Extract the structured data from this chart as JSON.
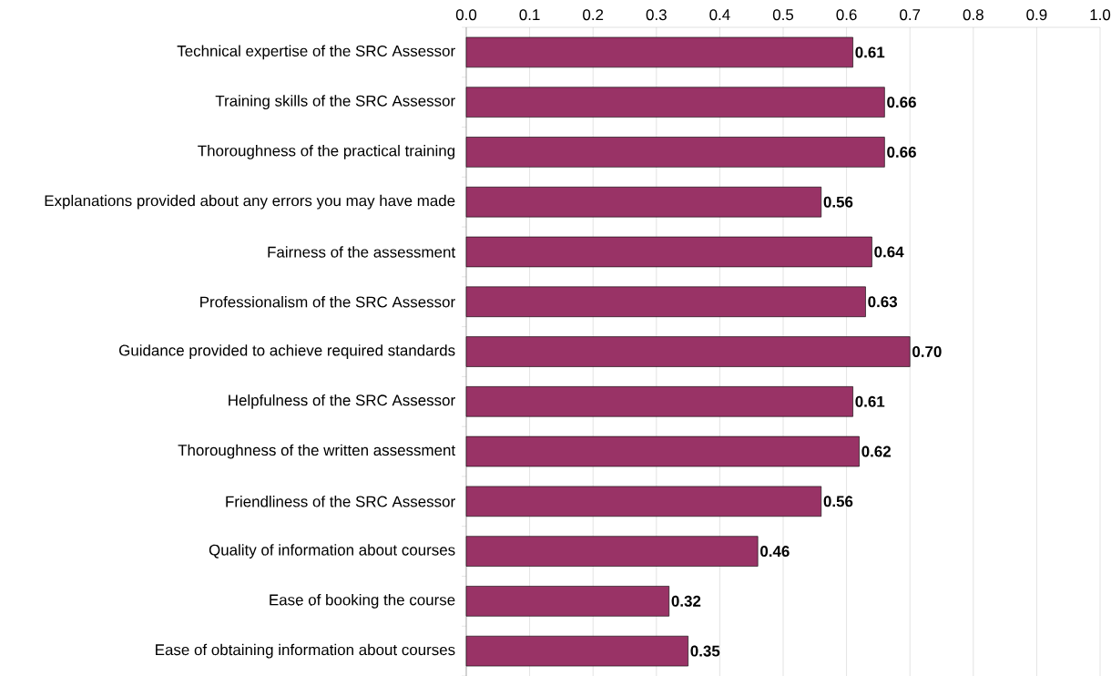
{
  "chart_data": {
    "type": "bar",
    "orientation": "horizontal",
    "categories": [
      "Technical expertise of the SRC Assessor",
      "Training skills of the SRC Assessor",
      "Thoroughness of the practical training",
      "Explanations provided about any errors you may have made",
      "Fairness of the assessment",
      "Professionalism of the SRC Assessor",
      "Guidance provided to achieve required standards",
      "Helpfulness of the SRC Assessor",
      "Thoroughness of the written assessment",
      "Friendliness of the SRC Assessor",
      "Quality of information about courses",
      "Ease of booking the course",
      "Ease of obtaining information about courses"
    ],
    "values": [
      0.61,
      0.66,
      0.66,
      0.56,
      0.64,
      0.63,
      0.7,
      0.61,
      0.62,
      0.56,
      0.46,
      0.32,
      0.35
    ],
    "value_labels": [
      "0.61",
      "0.66",
      "0.66",
      "0.56",
      "0.64",
      "0.63",
      "0.70",
      "0.61",
      "0.62",
      "0.56",
      "0.46",
      "0.32",
      "0.35"
    ],
    "color": "#993366",
    "xlim": [
      0,
      1
    ],
    "xticks": [
      {
        "value": 0,
        "label": "0.0"
      },
      0.1,
      0.2,
      0.3,
      0.4,
      0.5,
      0.6,
      0.7,
      0.8,
      0.9,
      {
        "value": 1,
        "label": "1.0"
      }
    ],
    "grid": "x"
  }
}
